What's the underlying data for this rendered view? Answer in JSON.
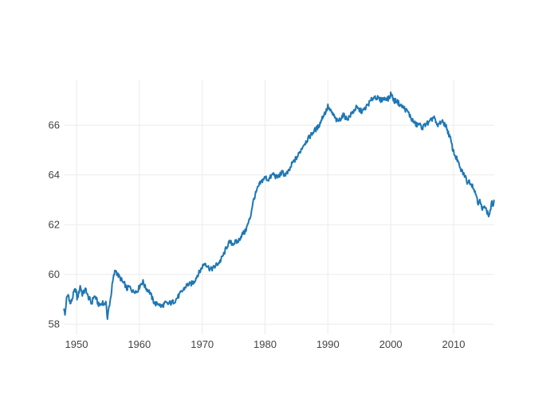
{
  "chart_data": {
    "type": "line",
    "title": "",
    "xlabel": "",
    "ylabel": "",
    "legend": false,
    "grid": true,
    "x_range": [
      1947.97,
      2016.47
    ],
    "y_range": [
      57.59,
      67.83
    ],
    "x_ticks": [
      {
        "value": 1950,
        "label": "1950"
      },
      {
        "value": 1960,
        "label": "1960"
      },
      {
        "value": 1970,
        "label": "1970"
      },
      {
        "value": 1980,
        "label": "1980"
      },
      {
        "value": 1990,
        "label": "1990"
      },
      {
        "value": 2000,
        "label": "2000"
      },
      {
        "value": 2010,
        "label": "2010"
      }
    ],
    "y_ticks": [
      {
        "value": 58,
        "label": "58"
      },
      {
        "value": 60,
        "label": "60"
      },
      {
        "value": 62,
        "label": "62"
      },
      {
        "value": 64,
        "label": "64"
      },
      {
        "value": 66,
        "label": "66"
      }
    ],
    "line_color": "#1f77b4",
    "style": {
      "background_color": "#ffffff",
      "grid_color": "#ebebeb",
      "tick_color": "#444444",
      "tick_font_size": 13,
      "line_width": 2
    },
    "series": [
      {
        "points": [
          [
            1948.0,
            58.6
          ],
          [
            1948.17,
            58.35
          ],
          [
            1948.4,
            59.0
          ],
          [
            1948.7,
            59.2
          ],
          [
            1949.0,
            58.8
          ],
          [
            1949.3,
            59.0
          ],
          [
            1949.6,
            59.3
          ],
          [
            1949.9,
            59.4
          ],
          [
            1950.1,
            59.0
          ],
          [
            1950.4,
            59.3
          ],
          [
            1950.6,
            59.55
          ],
          [
            1950.9,
            59.2
          ],
          [
            1951.2,
            59.3
          ],
          [
            1951.5,
            59.4
          ],
          [
            1951.8,
            59.1
          ],
          [
            1952.1,
            59.0
          ],
          [
            1952.4,
            58.8
          ],
          [
            1952.7,
            59.1
          ],
          [
            1953.0,
            59.1
          ],
          [
            1953.3,
            58.9
          ],
          [
            1953.6,
            58.75
          ],
          [
            1953.9,
            58.8
          ],
          [
            1954.2,
            58.9
          ],
          [
            1954.5,
            58.7
          ],
          [
            1954.65,
            59.05
          ],
          [
            1954.92,
            58.15
          ],
          [
            1955.1,
            58.6
          ],
          [
            1955.4,
            59.0
          ],
          [
            1955.7,
            59.6
          ],
          [
            1955.9,
            59.9
          ],
          [
            1956.2,
            60.2
          ],
          [
            1956.5,
            60.0
          ],
          [
            1956.8,
            59.9
          ],
          [
            1957.1,
            59.8
          ],
          [
            1957.4,
            59.65
          ],
          [
            1957.7,
            59.6
          ],
          [
            1958.0,
            59.4
          ],
          [
            1958.3,
            59.5
          ],
          [
            1958.6,
            59.45
          ],
          [
            1959.0,
            59.3
          ],
          [
            1959.3,
            59.35
          ],
          [
            1959.6,
            59.3
          ],
          [
            1960.0,
            59.5
          ],
          [
            1960.3,
            59.65
          ],
          [
            1960.6,
            59.7
          ],
          [
            1960.9,
            59.5
          ],
          [
            1961.2,
            59.4
          ],
          [
            1961.5,
            59.35
          ],
          [
            1961.8,
            59.2
          ],
          [
            1962.1,
            59.0
          ],
          [
            1962.4,
            58.85
          ],
          [
            1962.7,
            58.8
          ],
          [
            1963.0,
            58.85
          ],
          [
            1963.3,
            58.75
          ],
          [
            1963.6,
            58.7
          ],
          [
            1963.9,
            58.8
          ],
          [
            1964.2,
            58.85
          ],
          [
            1964.5,
            58.8
          ],
          [
            1964.8,
            58.85
          ],
          [
            1965.1,
            58.85
          ],
          [
            1965.4,
            58.9
          ],
          [
            1965.7,
            58.95
          ],
          [
            1966.0,
            59.05
          ],
          [
            1966.3,
            59.15
          ],
          [
            1966.6,
            59.25
          ],
          [
            1966.9,
            59.35
          ],
          [
            1967.2,
            59.45
          ],
          [
            1967.5,
            59.55
          ],
          [
            1967.8,
            59.6
          ],
          [
            1968.1,
            59.6
          ],
          [
            1968.4,
            59.65
          ],
          [
            1968.7,
            59.7
          ],
          [
            1969.0,
            59.85
          ],
          [
            1969.3,
            60.0
          ],
          [
            1969.6,
            60.1
          ],
          [
            1969.9,
            60.25
          ],
          [
            1970.2,
            60.4
          ],
          [
            1970.5,
            60.45
          ],
          [
            1970.8,
            60.35
          ],
          [
            1971.1,
            60.25
          ],
          [
            1971.4,
            60.2
          ],
          [
            1971.7,
            60.25
          ],
          [
            1972.0,
            60.3
          ],
          [
            1972.3,
            60.4
          ],
          [
            1972.6,
            60.45
          ],
          [
            1972.9,
            60.55
          ],
          [
            1973.2,
            60.7
          ],
          [
            1973.5,
            60.85
          ],
          [
            1973.8,
            61.05
          ],
          [
            1974.1,
            61.2
          ],
          [
            1974.4,
            61.3
          ],
          [
            1974.7,
            61.25
          ],
          [
            1975.0,
            61.25
          ],
          [
            1975.3,
            61.3
          ],
          [
            1975.6,
            61.3
          ],
          [
            1975.9,
            61.4
          ],
          [
            1976.2,
            61.55
          ],
          [
            1976.5,
            61.65
          ],
          [
            1976.8,
            61.7
          ],
          [
            1977.1,
            61.9
          ],
          [
            1977.4,
            62.1
          ],
          [
            1977.7,
            62.35
          ],
          [
            1978.0,
            62.8
          ],
          [
            1978.3,
            63.1
          ],
          [
            1978.6,
            63.3
          ],
          [
            1978.9,
            63.5
          ],
          [
            1979.2,
            63.65
          ],
          [
            1979.5,
            63.75
          ],
          [
            1979.8,
            63.85
          ],
          [
            1980.1,
            63.9
          ],
          [
            1980.4,
            63.8
          ],
          [
            1980.7,
            63.85
          ],
          [
            1981.0,
            63.95
          ],
          [
            1981.3,
            64.05
          ],
          [
            1981.6,
            63.95
          ],
          [
            1981.9,
            63.9
          ],
          [
            1982.2,
            63.95
          ],
          [
            1982.5,
            64.05
          ],
          [
            1982.8,
            64.1
          ],
          [
            1983.1,
            64.0
          ],
          [
            1983.4,
            64.05
          ],
          [
            1983.7,
            64.1
          ],
          [
            1984.0,
            64.25
          ],
          [
            1984.3,
            64.45
          ],
          [
            1984.6,
            64.55
          ],
          [
            1984.9,
            64.65
          ],
          [
            1985.2,
            64.75
          ],
          [
            1985.5,
            64.9
          ],
          [
            1985.8,
            65.05
          ],
          [
            1986.1,
            65.2
          ],
          [
            1986.4,
            65.3
          ],
          [
            1986.7,
            65.4
          ],
          [
            1987.0,
            65.5
          ],
          [
            1987.3,
            65.6
          ],
          [
            1987.6,
            65.7
          ],
          [
            1987.9,
            65.8
          ],
          [
            1988.2,
            65.85
          ],
          [
            1988.5,
            65.95
          ],
          [
            1988.8,
            66.1
          ],
          [
            1989.1,
            66.3
          ],
          [
            1989.4,
            66.45
          ],
          [
            1989.7,
            66.55
          ],
          [
            1990.0,
            66.75
          ],
          [
            1990.3,
            66.6
          ],
          [
            1990.6,
            66.5
          ],
          [
            1990.9,
            66.4
          ],
          [
            1991.2,
            66.25
          ],
          [
            1991.5,
            66.15
          ],
          [
            1991.8,
            66.2
          ],
          [
            1992.1,
            66.3
          ],
          [
            1992.4,
            66.4
          ],
          [
            1992.7,
            66.35
          ],
          [
            1993.0,
            66.25
          ],
          [
            1993.3,
            66.3
          ],
          [
            1993.6,
            66.4
          ],
          [
            1993.9,
            66.5
          ],
          [
            1994.2,
            66.6
          ],
          [
            1994.5,
            66.7
          ],
          [
            1994.8,
            66.65
          ],
          [
            1995.1,
            66.6
          ],
          [
            1995.4,
            66.55
          ],
          [
            1995.7,
            66.6
          ],
          [
            1996.0,
            66.7
          ],
          [
            1996.3,
            66.8
          ],
          [
            1996.6,
            66.9
          ],
          [
            1996.9,
            67.0
          ],
          [
            1997.2,
            67.1
          ],
          [
            1997.5,
            67.15
          ],
          [
            1997.8,
            67.1
          ],
          [
            1998.1,
            67.05
          ],
          [
            1998.4,
            67.0
          ],
          [
            1998.7,
            67.05
          ],
          [
            1999.0,
            67.05
          ],
          [
            1999.3,
            67.1
          ],
          [
            1999.6,
            67.05
          ],
          [
            1999.9,
            67.15
          ],
          [
            2000.05,
            67.3
          ],
          [
            2000.3,
            67.1
          ],
          [
            2000.6,
            66.95
          ],
          [
            2000.9,
            67.0
          ],
          [
            2001.2,
            66.9
          ],
          [
            2001.5,
            66.8
          ],
          [
            2001.8,
            66.75
          ],
          [
            2002.1,
            66.7
          ],
          [
            2002.4,
            66.6
          ],
          [
            2002.7,
            66.55
          ],
          [
            2003.0,
            66.4
          ],
          [
            2003.3,
            66.25
          ],
          [
            2003.6,
            66.15
          ],
          [
            2003.9,
            66.05
          ],
          [
            2004.2,
            66.0
          ],
          [
            2004.5,
            66.05
          ],
          [
            2004.8,
            65.95
          ],
          [
            2005.1,
            65.9
          ],
          [
            2005.4,
            66.0
          ],
          [
            2005.7,
            66.1
          ],
          [
            2006.0,
            66.05
          ],
          [
            2006.3,
            66.15
          ],
          [
            2006.6,
            66.25
          ],
          [
            2006.9,
            66.35
          ],
          [
            2007.1,
            66.15
          ],
          [
            2007.4,
            65.95
          ],
          [
            2007.7,
            66.05
          ],
          [
            2008.0,
            66.15
          ],
          [
            2008.3,
            66.1
          ],
          [
            2008.6,
            66.05
          ],
          [
            2008.9,
            65.9
          ],
          [
            2009.2,
            65.65
          ],
          [
            2009.5,
            65.45
          ],
          [
            2009.8,
            65.1
          ],
          [
            2010.1,
            64.85
          ],
          [
            2010.4,
            64.7
          ],
          [
            2010.7,
            64.55
          ],
          [
            2011.0,
            64.25
          ],
          [
            2011.3,
            64.15
          ],
          [
            2011.6,
            64.05
          ],
          [
            2011.9,
            63.9
          ],
          [
            2012.2,
            63.7
          ],
          [
            2012.5,
            63.75
          ],
          [
            2012.8,
            63.65
          ],
          [
            2013.1,
            63.55
          ],
          [
            2013.4,
            63.3
          ],
          [
            2013.7,
            63.15
          ],
          [
            2013.9,
            62.85
          ],
          [
            2014.1,
            63.0
          ],
          [
            2014.4,
            62.75
          ],
          [
            2014.6,
            62.55
          ],
          [
            2014.9,
            62.85
          ],
          [
            2015.1,
            62.65
          ],
          [
            2015.35,
            62.5
          ],
          [
            2015.6,
            62.35
          ],
          [
            2015.9,
            62.6
          ],
          [
            2016.05,
            62.95
          ],
          [
            2016.2,
            62.7
          ],
          [
            2016.32,
            62.85
          ],
          [
            2016.42,
            62.9
          ]
        ]
      }
    ]
  }
}
